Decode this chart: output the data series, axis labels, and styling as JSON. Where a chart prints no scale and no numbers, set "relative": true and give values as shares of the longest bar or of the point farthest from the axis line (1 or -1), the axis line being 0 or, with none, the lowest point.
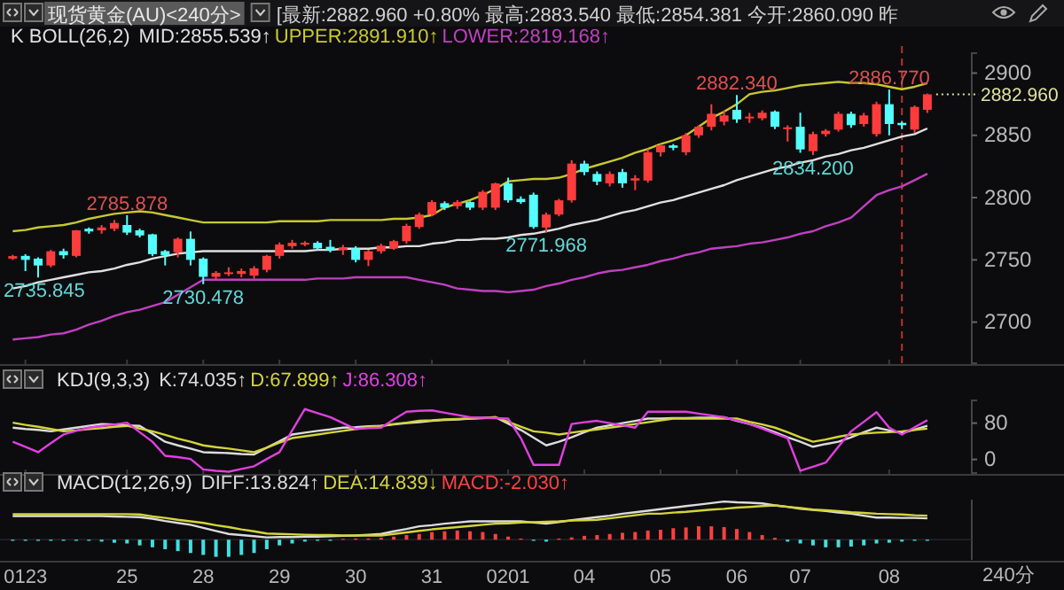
{
  "chart_data": [
    {
      "type": "candlestick",
      "title": "现货黄金(AU)<240分>",
      "subtitle": "[最新:2882.960 +0.80% 最高:2883.540 最低:2854.381 今开:2860.090 昨",
      "annotations": [
        "K BOLL(26,2)",
        {
          "text": "2785.878",
          "y": 2785.878
        },
        {
          "text": "2735.845",
          "y": 2735.845
        },
        {
          "text": "2730.478",
          "y": 2730.478
        },
        {
          "text": "2771.968",
          "y": 2771.968
        },
        {
          "text": "2882.340",
          "y": 2882.34
        },
        {
          "text": "2886.770",
          "y": 2886.77
        },
        {
          "text": "2834.200",
          "y": 2834.2
        }
      ],
      "categories": [
        null,
        "0123",
        null,
        null,
        null,
        null,
        null,
        null,
        null,
        "25",
        null,
        null,
        null,
        null,
        null,
        "28",
        null,
        null,
        null,
        null,
        null,
        "29",
        null,
        null,
        null,
        null,
        null,
        "30",
        null,
        null,
        null,
        null,
        null,
        "31",
        null,
        null,
        null,
        null,
        null,
        "0201",
        null,
        null,
        null,
        null,
        null,
        "04",
        null,
        null,
        null,
        null,
        null,
        "05",
        null,
        null,
        null,
        null,
        null,
        "06",
        null,
        null,
        null,
        null,
        "07",
        null,
        null,
        null,
        null,
        null,
        null,
        "08",
        null,
        null,
        null
      ],
      "ohlc": [
        [
          2751,
          2754,
          2750,
          2753
        ],
        [
          2753.2,
          2754.6,
          2741,
          2750
        ],
        [
          2751,
          2752,
          2735.845,
          2745.5
        ],
        [
          2745.5,
          2758,
          2744,
          2756.9
        ],
        [
          2757,
          2759,
          2751,
          2753.7
        ],
        [
          2753.2,
          2774,
          2752,
          2773.7
        ],
        [
          2775,
          2776,
          2771,
          2772.8
        ],
        [
          2773.7,
          2778,
          2771,
          2776
        ],
        [
          2775,
          2782,
          2773,
          2779.6
        ],
        [
          2778,
          2785.878,
          2770,
          2771.9
        ],
        [
          2773.7,
          2775,
          2768,
          2769.6
        ],
        [
          2770.5,
          2771,
          2753,
          2754.6
        ],
        [
          2757,
          2758,
          2745.5,
          2753.7
        ],
        [
          2756,
          2768,
          2752,
          2766.9
        ],
        [
          2766.9,
          2772.8,
          2745.5,
          2750
        ],
        [
          2751,
          2752,
          2730.478,
          2736.4
        ],
        [
          2736.4,
          2741,
          2734,
          2739.6
        ],
        [
          2739.6,
          2744,
          2737,
          2740
        ],
        [
          2738.7,
          2743,
          2736,
          2741
        ],
        [
          2737.3,
          2745,
          2735,
          2743.2
        ],
        [
          2742,
          2754,
          2740,
          2753.2
        ],
        [
          2753.2,
          2764,
          2751,
          2762.3
        ],
        [
          2761,
          2766,
          2759,
          2763.7
        ],
        [
          2762.8,
          2765,
          2761,
          2763.7
        ],
        [
          2763.7,
          2765,
          2758,
          2759.2
        ],
        [
          2760.5,
          2766,
          2756,
          2757.8
        ],
        [
          2757.8,
          2762,
          2754,
          2760
        ],
        [
          2759.2,
          2761,
          2748,
          2750
        ],
        [
          2750,
          2758,
          2745,
          2756.9
        ],
        [
          2756.9,
          2763,
          2755,
          2761.4
        ],
        [
          2759.2,
          2766,
          2758,
          2765
        ],
        [
          2765,
          2779,
          2763,
          2777.3
        ],
        [
          2776.4,
          2788,
          2775,
          2786.4
        ],
        [
          2786.4,
          2798,
          2785,
          2796.4
        ],
        [
          2795.5,
          2797,
          2790,
          2791.9
        ],
        [
          2793.2,
          2798,
          2791,
          2796.4
        ],
        [
          2796.4,
          2797,
          2790,
          2791.9
        ],
        [
          2791.9,
          2806,
          2790,
          2804.6
        ],
        [
          2791.9,
          2812,
          2790,
          2811.4
        ],
        [
          2811.4,
          2816,
          2796,
          2797.8
        ],
        [
          2799,
          2801,
          2795,
          2796.4
        ],
        [
          2802.3,
          2804,
          2775,
          2776.4
        ],
        [
          2776,
          2788,
          2771.968,
          2786.4
        ],
        [
          2786.4,
          2799,
          2785,
          2797.8
        ],
        [
          2797.8,
          2830,
          2796,
          2827.3
        ],
        [
          2827.3,
          2829.6,
          2818,
          2820.5
        ],
        [
          2819,
          2821,
          2810,
          2812.8
        ],
        [
          2811.4,
          2821,
          2809,
          2819
        ],
        [
          2820.5,
          2823,
          2808,
          2811.4
        ],
        [
          2813.7,
          2818,
          2806,
          2815.5
        ],
        [
          2813.7,
          2839,
          2812,
          2836.4
        ],
        [
          2836.4,
          2843,
          2833,
          2841.9
        ],
        [
          2841.9,
          2843,
          2838,
          2840
        ],
        [
          2836.4,
          2852,
          2834,
          2850
        ],
        [
          2850,
          2858,
          2848,
          2856.9
        ],
        [
          2856.9,
          2875,
          2854,
          2867.3
        ],
        [
          2861,
          2870,
          2858,
          2866
        ],
        [
          2870.5,
          2882.34,
          2860,
          2862.8
        ],
        [
          2863.7,
          2868,
          2860,
          2865
        ],
        [
          2863.7,
          2870,
          2862,
          2868.2
        ],
        [
          2869.1,
          2870,
          2855,
          2856.9
        ],
        [
          2855.5,
          2858,
          2845,
          2856.4
        ],
        [
          2856.9,
          2868.2,
          2836,
          2838.7
        ],
        [
          2837.3,
          2853,
          2834.2,
          2851
        ],
        [
          2851,
          2855,
          2849,
          2853.7
        ],
        [
          2854.6,
          2869,
          2853,
          2867.3
        ],
        [
          2867.3,
          2869,
          2856,
          2858.2
        ],
        [
          2859.1,
          2868,
          2857,
          2866
        ],
        [
          2851,
          2877,
          2849,
          2875
        ],
        [
          2875,
          2886.77,
          2850,
          2859.1
        ],
        [
          2860,
          2861,
          2855,
          2858.2
        ],
        [
          2854.6,
          2874,
          2852,
          2872.8
        ],
        [
          2870.5,
          2883.54,
          2868,
          2882.96
        ]
      ],
      "series": [
        {
          "type": "line",
          "name": "MID:2855.539↑",
          "color": "#e0e0e0",
          "values": [
            2727,
            2729,
            2732,
            2734,
            2736,
            2738,
            2740,
            2741,
            2743,
            2746,
            2748,
            2751,
            2753,
            2755,
            2756,
            2757,
            2757,
            2757,
            2757,
            2757,
            2757,
            2757,
            2757,
            2757,
            2758,
            2758,
            2759,
            2759,
            2759,
            2760,
            2760,
            2761,
            2761,
            2763,
            2764,
            2766,
            2766,
            2767,
            2767,
            2768,
            2770,
            2771,
            2773,
            2775,
            2778,
            2780,
            2782,
            2785,
            2788,
            2790,
            2793,
            2796,
            2798,
            2801,
            2804,
            2807,
            2810,
            2814,
            2817,
            2820,
            2823,
            2825,
            2828,
            2830,
            2833,
            2835,
            2838,
            2840,
            2843,
            2846,
            2849,
            2851,
            2855.539
          ]
        },
        {
          "type": "line",
          "name": "UPPER:2891.910↑",
          "color": "#c8c832",
          "values": [
            2773,
            2774,
            2776,
            2777,
            2778,
            2780,
            2783,
            2785,
            2787,
            2788,
            2789,
            2788,
            2786,
            2784,
            2782,
            2780,
            2780,
            2780,
            2780,
            2780,
            2780,
            2781,
            2781,
            2781,
            2781,
            2782,
            2782,
            2782,
            2782,
            2782,
            2783,
            2783,
            2784,
            2786,
            2792,
            2795,
            2798,
            2802,
            2807,
            2813,
            2814,
            2815,
            2815,
            2816,
            2819,
            2823,
            2826,
            2829,
            2832,
            2836,
            2839,
            2843,
            2846,
            2850,
            2857,
            2864,
            2869,
            2875,
            2883,
            2885,
            2886,
            2888,
            2890,
            2891,
            2892,
            2893,
            2892,
            2892,
            2891,
            2889,
            2887,
            2889,
            2891.91
          ]
        },
        {
          "type": "line",
          "name": "LOWER:2819.168↑",
          "color": "#c040c0",
          "values": [
            2686,
            2687,
            2688,
            2690,
            2691,
            2694,
            2698,
            2701,
            2705,
            2708,
            2710,
            2713,
            2716,
            2722,
            2728,
            2734,
            2734,
            2734,
            2734,
            2734,
            2734,
            2734,
            2734,
            2734,
            2735,
            2735,
            2735,
            2736,
            2736,
            2736,
            2736,
            2736,
            2734,
            2732,
            2730,
            2727,
            2726,
            2725,
            2725,
            2724,
            2725,
            2726,
            2729,
            2731,
            2734,
            2736,
            2739,
            2741,
            2742,
            2744,
            2746,
            2749,
            2751,
            2754,
            2756,
            2759,
            2760,
            2761,
            2763,
            2764,
            2766,
            2768,
            2771,
            2773,
            2777,
            2780,
            2784,
            2793,
            2802,
            2806,
            2809,
            2814,
            2819.168
          ]
        }
      ],
      "ylim": [
        2667,
        2916
      ],
      "yticks": [
        2700,
        2750,
        2800,
        2850,
        2900
      ],
      "ref_lines": [
        {
          "axis": "y",
          "value": 2882.96,
          "label": "2882.960",
          "color": "#e0e0a0",
          "line_style": "dotted"
        }
      ],
      "legend": "top",
      "tick_labels": "y"
    },
    {
      "type": "line",
      "annotations": [
        "KDJ(9,3,3)"
      ],
      "categories": [
        null,
        "0123",
        null,
        null,
        null,
        null,
        null,
        null,
        null,
        "25",
        null,
        null,
        null,
        null,
        null,
        "28",
        null,
        null,
        null,
        null,
        null,
        "29",
        null,
        null,
        null,
        null,
        null,
        "30",
        null,
        null,
        null,
        null,
        null,
        "31",
        null,
        null,
        null,
        null,
        null,
        "0201",
        null,
        null,
        null,
        null,
        null,
        "04",
        null,
        null,
        null,
        null,
        null,
        "05",
        null,
        null,
        null,
        null,
        null,
        "06",
        null,
        null,
        null,
        null,
        "07",
        null,
        null,
        null,
        null,
        null,
        null,
        "08",
        null,
        null,
        null
      ],
      "series": [
        {
          "name": "K:74.035↑",
          "color": "#dcdcdc",
          "values": [
            70,
            67,
            65,
            62,
            66,
            70,
            74,
            78,
            77,
            75,
            74,
            57,
            39,
            31,
            24,
            16,
            15,
            14,
            12,
            11,
            26,
            40,
            55,
            59,
            63,
            66,
            70,
            71,
            73,
            74,
            77,
            80,
            82,
            85,
            87,
            88,
            90,
            91,
            93,
            79,
            65,
            48,
            31,
            39,
            49,
            60,
            70,
            75,
            80,
            85,
            90,
            90,
            91,
            91,
            92,
            92,
            93,
            85,
            78,
            70,
            60,
            49,
            39,
            28,
            34,
            39,
            49,
            60,
            70,
            64,
            58,
            66,
            74.035
          ]
        },
        {
          "name": "D:67.899↑",
          "color": "#d4d43a",
          "values": [
            81,
            76,
            72,
            67,
            62,
            64,
            67,
            69,
            72,
            74,
            68,
            62,
            54,
            46,
            39,
            31,
            27,
            24,
            20,
            16,
            26,
            37,
            47,
            51,
            55,
            59,
            63,
            67,
            71,
            74,
            78,
            81,
            85,
            86,
            88,
            89,
            90,
            92,
            93,
            83,
            72,
            62,
            59,
            55,
            59,
            63,
            66,
            70,
            74,
            78,
            82,
            86,
            90,
            90,
            90,
            90,
            90,
            90,
            83,
            77,
            70,
            60,
            49,
            39,
            44,
            50,
            55,
            57,
            59,
            60,
            62,
            65,
            67.899
          ]
        },
        {
          "name": "J:86.308↑",
          "color": "#e040e0",
          "values": [
            39,
            28,
            16,
            36,
            55,
            63,
            70,
            74,
            77,
            81,
            60,
            39,
            8,
            5,
            1,
            -22,
            -25,
            -27,
            -21,
            -15,
            1,
            16,
            64,
            111,
            102,
            93,
            80,
            67,
            69,
            70,
            88,
            105,
            107,
            108,
            103,
            98,
            93,
            92,
            91,
            90,
            47,
            -12,
            -12,
            -12,
            78,
            82,
            85,
            80,
            75,
            70,
            105,
            105,
            105,
            105,
            101,
            97,
            93,
            86,
            78,
            68,
            57,
            47,
            -25,
            -16,
            -7,
            28,
            62,
            83,
            104,
            70,
            55,
            71,
            86.308
          ]
        }
      ],
      "ylim": [
        -30,
        130
      ],
      "yticks": [
        0,
        80
      ],
      "legend": "top left",
      "tick_labels": "y"
    },
    {
      "type": "line",
      "relative": true,
      "annotations": [
        "MACD(12,26,9)",
        "240分"
      ],
      "categories": [
        null,
        "0123",
        null,
        null,
        null,
        null,
        null,
        null,
        null,
        "25",
        null,
        null,
        null,
        null,
        null,
        "28",
        null,
        null,
        null,
        null,
        null,
        "29",
        null,
        null,
        null,
        null,
        null,
        "30",
        null,
        null,
        null,
        null,
        null,
        "31",
        null,
        null,
        null,
        null,
        null,
        "0201",
        null,
        null,
        null,
        null,
        null,
        "04",
        null,
        null,
        null,
        null,
        null,
        "05",
        null,
        null,
        null,
        null,
        null,
        "06",
        null,
        null,
        null,
        null,
        "07",
        null,
        null,
        null,
        null,
        null,
        null,
        "08",
        null,
        null,
        null
      ],
      "series": [
        {
          "name": "DIFF:13.824↑",
          "color": "#dcdcdc",
          "values": [
            0.62,
            0.62,
            0.62,
            0.62,
            0.62,
            0.62,
            0.62,
            0.62,
            0.61,
            0.6,
            0.59,
            0.55,
            0.49,
            0.44,
            0.39,
            0.31,
            0.23,
            0.15,
            0.12,
            0.09,
            0.06,
            0.07,
            0.07,
            0.08,
            0.08,
            0.09,
            0.1,
            0.11,
            0.13,
            0.15,
            0.22,
            0.28,
            0.35,
            0.38,
            0.42,
            0.45,
            0.48,
            0.48,
            0.48,
            0.48,
            0.48,
            0.45,
            0.42,
            0.46,
            0.51,
            0.55,
            0.59,
            0.63,
            0.68,
            0.72,
            0.76,
            0.8,
            0.84,
            0.88,
            0.92,
            0.96,
            1,
            0.98,
            0.97,
            0.95,
            0.9,
            0.86,
            0.81,
            0.78,
            0.75,
            0.71,
            0.68,
            0.63,
            0.58,
            0.58,
            0.57,
            0.57,
            0.56
          ]
        },
        {
          "name": "DEA:14.839↓",
          "color": "#d4d43a",
          "values": [
            0.67,
            0.67,
            0.67,
            0.67,
            0.67,
            0.67,
            0.67,
            0.67,
            0.67,
            0.67,
            0.66,
            0.61,
            0.57,
            0.52,
            0.48,
            0.44,
            0.38,
            0.33,
            0.27,
            0.22,
            0.16,
            0.15,
            0.14,
            0.13,
            0.12,
            0.12,
            0.11,
            0.11,
            0.11,
            0.11,
            0.15,
            0.19,
            0.23,
            0.27,
            0.3,
            0.33,
            0.36,
            0.39,
            0.42,
            0.43,
            0.45,
            0.46,
            0.47,
            0.48,
            0.5,
            0.51,
            0.52,
            0.56,
            0.6,
            0.64,
            0.68,
            0.68,
            0.71,
            0.73,
            0.76,
            0.79,
            0.81,
            0.84,
            0.86,
            0.88,
            0.9,
            0.86,
            0.83,
            0.79,
            0.77,
            0.75,
            0.72,
            0.7,
            0.68,
            0.67,
            0.66,
            0.64,
            0.63
          ]
        },
        {
          "type": "bar",
          "name": "MACD:-2.030↑",
          "color": "#ff4040",
          "values": [
            null,
            null,
            null,
            null,
            null,
            null,
            null,
            null,
            null,
            null,
            null,
            null,
            null,
            null,
            null,
            null,
            null,
            null,
            null,
            null,
            null,
            null,
            null,
            null,
            null,
            null,
            0.02,
            0.03,
            0.03,
            0.05,
            0.08,
            0.12,
            0.15,
            0.2,
            0.22,
            0.24,
            0.22,
            0.2,
            0.15,
            0.08,
            0.03,
            null,
            null,
            0.03,
            0.06,
            0.1,
            0.12,
            0.15,
            0.18,
            0.2,
            0.24,
            0.26,
            0.3,
            0.32,
            0.35,
            0.35,
            0.33,
            0.28,
            0.2,
            0.12,
            0.05,
            null,
            null,
            null,
            null,
            null,
            null,
            null,
            null,
            null,
            null,
            null,
            null
          ]
        },
        {
          "type": "bar",
          "color": "#40e0e0",
          "values": [
            -0.03,
            -0.03,
            -0.03,
            -0.03,
            -0.03,
            -0.03,
            -0.03,
            -0.05,
            -0.08,
            -0.1,
            -0.15,
            -0.2,
            -0.25,
            -0.3,
            -0.35,
            -0.4,
            -0.45,
            -0.45,
            -0.4,
            -0.35,
            -0.25,
            -0.15,
            -0.1,
            -0.05,
            -0.03,
            -0.03,
            null,
            null,
            null,
            null,
            null,
            null,
            null,
            null,
            null,
            null,
            null,
            null,
            null,
            null,
            null,
            -0.03,
            -0.05,
            null,
            null,
            null,
            null,
            null,
            null,
            null,
            null,
            null,
            null,
            null,
            null,
            null,
            null,
            null,
            null,
            null,
            null,
            -0.05,
            -0.1,
            -0.15,
            -0.2,
            -0.2,
            -0.18,
            -0.15,
            -0.1,
            -0.08,
            -0.05,
            -0.03,
            -0.03
          ]
        }
      ],
      "legend": "top left",
      "tick_labels": "x"
    }
  ]
}
